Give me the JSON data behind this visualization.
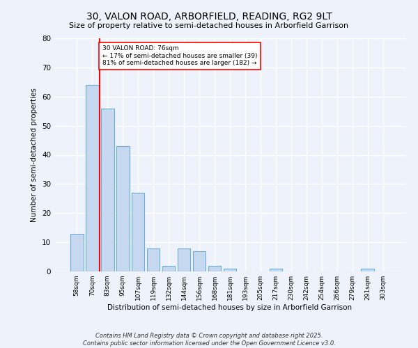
{
  "title": "30, VALON ROAD, ARBORFIELD, READING, RG2 9LT",
  "subtitle": "Size of property relative to semi-detached houses in Arborfield Garrison",
  "xlabel": "Distribution of semi-detached houses by size in Arborfield Garrison",
  "ylabel": "Number of semi-detached properties",
  "bar_labels": [
    "58sqm",
    "70sqm",
    "83sqm",
    "95sqm",
    "107sqm",
    "119sqm",
    "132sqm",
    "144sqm",
    "156sqm",
    "168sqm",
    "181sqm",
    "193sqm",
    "205sqm",
    "217sqm",
    "230sqm",
    "242sqm",
    "254sqm",
    "266sqm",
    "279sqm",
    "291sqm",
    "303sqm"
  ],
  "bar_values": [
    13,
    64,
    56,
    43,
    27,
    8,
    2,
    8,
    7,
    2,
    1,
    0,
    0,
    1,
    0,
    0,
    0,
    0,
    0,
    1,
    0
  ],
  "bar_color": "#c5d8f0",
  "bar_edge_color": "#6aaed6",
  "vline_x": 1.5,
  "vline_color": "red",
  "annotation_title": "30 VALON ROAD: 76sqm",
  "annotation_line1": "← 17% of semi-detached houses are smaller (39)",
  "annotation_line2": "81% of semi-detached houses are larger (182) →",
  "annotation_box_color": "white",
  "annotation_box_edge": "red",
  "ylim": [
    0,
    80
  ],
  "yticks": [
    0,
    10,
    20,
    30,
    40,
    50,
    60,
    70,
    80
  ],
  "bg_color": "#eef3fb",
  "grid_color": "white",
  "footer": "Contains HM Land Registry data © Crown copyright and database right 2025.\nContains public sector information licensed under the Open Government Licence v3.0."
}
